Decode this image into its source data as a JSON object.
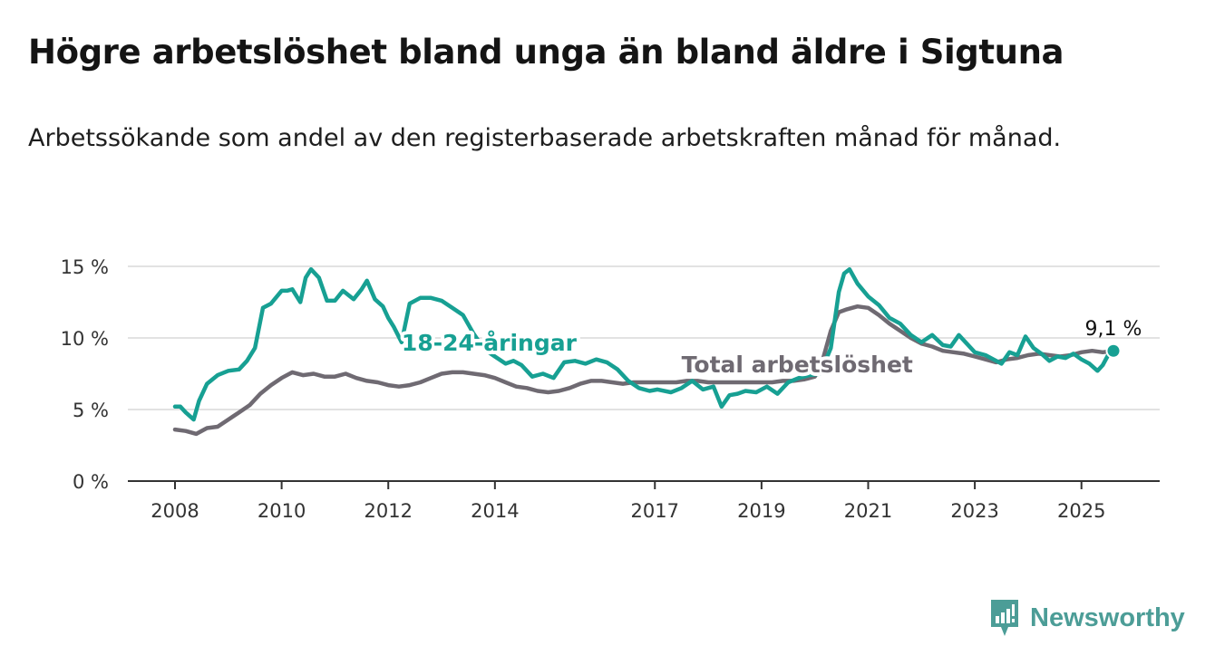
{
  "header": {
    "title": "Högre arbetslöshet bland unga än bland äldre i Sigtuna",
    "subtitle": "Arbetssökande som andel av den registerbaserade arbetskraften månad för månad."
  },
  "brand": {
    "name": "Newsworthy",
    "icon": "newsworthy-logo-icon",
    "color": "#4c9d97"
  },
  "chart_data": {
    "type": "line",
    "title": "Högre arbetslöshet bland unga än bland äldre i Sigtuna",
    "subtitle": "Arbetssökande som andel av den registerbaserade arbetskraften månad för månad.",
    "xlim": [
      2008,
      2025.6
    ],
    "ylim": [
      0,
      15
    ],
    "y_ticks": [
      0,
      5,
      10,
      15
    ],
    "y_tick_labels": [
      "0 %",
      "5 %",
      "10 %",
      "15 %"
    ],
    "x_ticks": [
      2008,
      2010,
      2012,
      2014,
      2017,
      2019,
      2021,
      2023,
      2025
    ],
    "x_tick_labels": [
      "2008",
      "2010",
      "2012",
      "2014",
      "2017",
      "2019",
      "2021",
      "2023",
      "2025"
    ],
    "grid": "horizontal",
    "legend": "inline labels on lines",
    "end_label": "9,1 %",
    "series": [
      {
        "name": "18-24-åringar",
        "color": "#17a093",
        "x": [
          2008.0,
          2008.1,
          2008.2,
          2008.35,
          2008.45,
          2008.6,
          2008.8,
          2009.0,
          2009.2,
          2009.35,
          2009.5,
          2009.65,
          2009.8,
          2010.0,
          2010.1,
          2010.2,
          2010.35,
          2010.45,
          2010.55,
          2010.7,
          2010.85,
          2011.0,
          2011.15,
          2011.35,
          2011.5,
          2011.6,
          2011.75,
          2011.9,
          2012.0,
          2012.1,
          2012.25,
          2012.4,
          2012.6,
          2012.8,
          2013.0,
          2013.2,
          2013.4,
          2013.6,
          2013.8,
          2014.0,
          2014.2,
          2014.35,
          2014.5,
          2014.7,
          2014.9,
          2015.1,
          2015.3,
          2015.5,
          2015.7,
          2015.9,
          2016.1,
          2016.3,
          2016.5,
          2016.7,
          2016.9,
          2017.05,
          2017.3,
          2017.5,
          2017.7,
          2017.9,
          2018.1,
          2018.25,
          2018.4,
          2018.55,
          2018.7,
          2018.9,
          2019.1,
          2019.3,
          2019.5,
          2019.7,
          2019.9,
          2020.1,
          2020.3,
          2020.45,
          2020.55,
          2020.65,
          2020.8,
          2021.0,
          2021.2,
          2021.4,
          2021.6,
          2021.8,
          2022.0,
          2022.2,
          2022.4,
          2022.55,
          2022.7,
          2022.85,
          2023.0,
          2023.2,
          2023.35,
          2023.5,
          2023.65,
          2023.8,
          2023.95,
          2024.1,
          2024.25,
          2024.4,
          2024.55,
          2024.7,
          2024.85,
          2025.0,
          2025.15,
          2025.3,
          2025.4,
          2025.5,
          2025.6
        ],
        "values": [
          5.2,
          5.2,
          4.8,
          4.3,
          5.6,
          6.8,
          7.4,
          7.7,
          7.8,
          8.4,
          9.3,
          12.1,
          12.4,
          13.3,
          13.3,
          13.4,
          12.5,
          14.2,
          14.8,
          14.2,
          12.6,
          12.6,
          13.3,
          12.7,
          13.4,
          14.0,
          12.7,
          12.2,
          11.4,
          10.8,
          9.7,
          12.4,
          12.8,
          12.8,
          12.6,
          12.1,
          11.6,
          10.3,
          9.2,
          8.7,
          8.2,
          8.4,
          8.1,
          7.3,
          7.5,
          7.2,
          8.3,
          8.4,
          8.2,
          8.5,
          8.3,
          7.8,
          7.0,
          6.5,
          6.3,
          6.4,
          6.2,
          6.5,
          7.0,
          6.4,
          6.6,
          5.2,
          6.0,
          6.1,
          6.3,
          6.2,
          6.6,
          6.1,
          6.9,
          7.2,
          7.4,
          7.5,
          9.3,
          13.2,
          14.5,
          14.8,
          13.8,
          12.9,
          12.3,
          11.4,
          11.0,
          10.2,
          9.7,
          10.2,
          9.5,
          9.4,
          10.2,
          9.6,
          9.0,
          8.8,
          8.5,
          8.2,
          9.0,
          8.8,
          10.1,
          9.3,
          8.9,
          8.4,
          8.7,
          8.6,
          8.9,
          8.5,
          8.2,
          7.7,
          8.1,
          8.8,
          9.1
        ]
      },
      {
        "name": "Total arbetslöshet",
        "color": "#6f6a72",
        "x": [
          2008.0,
          2008.2,
          2008.4,
          2008.6,
          2008.8,
          2009.0,
          2009.2,
          2009.4,
          2009.6,
          2009.8,
          2010.0,
          2010.2,
          2010.4,
          2010.6,
          2010.8,
          2011.0,
          2011.2,
          2011.4,
          2011.6,
          2011.8,
          2012.0,
          2012.2,
          2012.4,
          2012.6,
          2012.8,
          2013.0,
          2013.2,
          2013.4,
          2013.6,
          2013.8,
          2014.0,
          2014.2,
          2014.4,
          2014.6,
          2014.8,
          2015.0,
          2015.2,
          2015.4,
          2015.6,
          2015.8,
          2016.0,
          2016.2,
          2016.4,
          2016.6,
          2016.8,
          2017.0,
          2017.2,
          2017.4,
          2017.6,
          2017.8,
          2018.0,
          2018.2,
          2018.4,
          2018.6,
          2018.8,
          2019.0,
          2019.2,
          2019.4,
          2019.6,
          2019.8,
          2020.0,
          2020.15,
          2020.3,
          2020.45,
          2020.6,
          2020.8,
          2021.0,
          2021.2,
          2021.4,
          2021.6,
          2021.8,
          2022.0,
          2022.2,
          2022.4,
          2022.6,
          2022.8,
          2023.0,
          2023.2,
          2023.4,
          2023.6,
          2023.8,
          2024.0,
          2024.2,
          2024.4,
          2024.6,
          2024.8,
          2025.0,
          2025.2,
          2025.4,
          2025.6
        ],
        "values": [
          3.6,
          3.5,
          3.3,
          3.7,
          3.8,
          4.3,
          4.8,
          5.3,
          6.1,
          6.7,
          7.2,
          7.6,
          7.4,
          7.5,
          7.3,
          7.3,
          7.5,
          7.2,
          7.0,
          6.9,
          6.7,
          6.6,
          6.7,
          6.9,
          7.2,
          7.5,
          7.6,
          7.6,
          7.5,
          7.4,
          7.2,
          6.9,
          6.6,
          6.5,
          6.3,
          6.2,
          6.3,
          6.5,
          6.8,
          7.0,
          7.0,
          6.9,
          6.8,
          6.9,
          6.9,
          6.9,
          6.9,
          6.9,
          7.0,
          7.0,
          6.9,
          6.9,
          6.9,
          6.9,
          6.9,
          6.9,
          6.9,
          7.0,
          7.0,
          7.1,
          7.3,
          8.5,
          10.5,
          11.8,
          12.0,
          12.2,
          12.1,
          11.6,
          11.0,
          10.5,
          10.0,
          9.6,
          9.4,
          9.1,
          9.0,
          8.9,
          8.7,
          8.5,
          8.3,
          8.5,
          8.6,
          8.8,
          8.9,
          8.8,
          8.7,
          8.8,
          9.0,
          9.1,
          9.0,
          9.1
        ]
      }
    ]
  }
}
